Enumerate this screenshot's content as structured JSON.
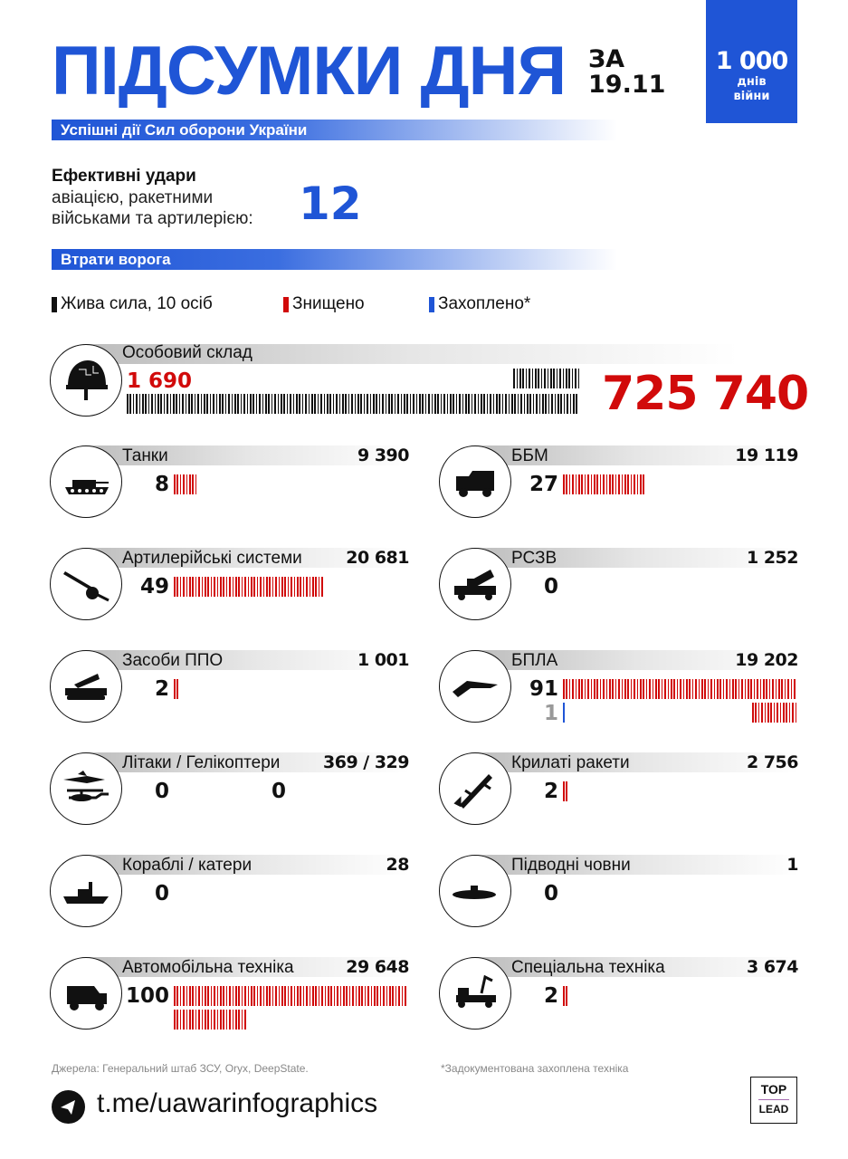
{
  "header": {
    "title": "ПІДСУМКИ ДНЯ",
    "za": "ЗА",
    "date": "19.11",
    "days_count": "1 000",
    "days_label1": "днів",
    "days_label2": "війни"
  },
  "band1": "Успішні дії Сил оборони України",
  "strikes": {
    "heading": "Ефективні удари",
    "line1": "авіацією, ракетними",
    "line2": "військами та артилерією:",
    "value": "12"
  },
  "band2": "Втрати ворога",
  "legend": [
    {
      "label": "Жива сила, 10 осіб",
      "color": "#111111"
    },
    {
      "label": "Знищено",
      "color": "#d10a0a"
    },
    {
      "label": "Захоплено*",
      "color": "#1f55d6"
    }
  ],
  "colors": {
    "accent": "#1f55d6",
    "destroyed": "#d10a0a",
    "personnel": "#111111"
  },
  "personnel": {
    "label": "Особовий склад",
    "today": "1 690",
    "today_value": 1690,
    "total": "725 740",
    "icon": "helmet-icon"
  },
  "items": [
    {
      "label": "Танки",
      "total": "9 390",
      "destroyed": "8",
      "destroyed_value": 8,
      "icon": "tank-icon"
    },
    {
      "label": "ББМ",
      "total": "19 119",
      "destroyed": "27",
      "destroyed_value": 27,
      "icon": "armored-vehicle-icon"
    },
    {
      "label": "Артилерійські системи",
      "total": "20 681",
      "destroyed": "49",
      "destroyed_value": 49,
      "icon": "howitzer-icon"
    },
    {
      "label": "РСЗВ",
      "total": "1 252",
      "destroyed": "0",
      "destroyed_value": 0,
      "icon": "mlrs-icon"
    },
    {
      "label": "Засоби ППО",
      "total": "1 001",
      "destroyed": "2",
      "destroyed_value": 2,
      "icon": "air-defense-icon"
    },
    {
      "label": "БПЛА",
      "total": "19 202",
      "destroyed": "91",
      "destroyed_value": 91,
      "captured": "1",
      "captured_value": 1,
      "icon": "drone-icon"
    },
    {
      "label": "Літаки / Гелікоптери",
      "total": "369 / 329",
      "destroyed": "0",
      "destroyed_value": 0,
      "destroyed2": "0",
      "icon": "aircraft-helicopter-icon"
    },
    {
      "label": "Крилаті ракети",
      "total": "2 756",
      "destroyed": "2",
      "destroyed_value": 2,
      "icon": "cruise-missile-icon"
    },
    {
      "label": "Кораблі / катери",
      "total": "28",
      "destroyed": "0",
      "destroyed_value": 0,
      "icon": "ship-icon"
    },
    {
      "label": "Підводні човни",
      "total": "1",
      "destroyed": "0",
      "destroyed_value": 0,
      "icon": "submarine-icon"
    },
    {
      "label": "Автомобільна техніка",
      "total": "29 648",
      "destroyed": "100",
      "destroyed_value": 100,
      "icon": "truck-icon"
    },
    {
      "label": "Спеціальна техніка",
      "total": "3 674",
      "destroyed": "2",
      "destroyed_value": 2,
      "icon": "special-vehicle-icon"
    }
  ],
  "footer": {
    "sources": "Джерела: Генеральний штаб ЗСУ, Oryx, DeepState.",
    "note": "*Задокументована захоплена техніка",
    "link": "t.me/uawarinfographics",
    "logo_top": "TOP",
    "logo_bottom": "LEAD"
  }
}
